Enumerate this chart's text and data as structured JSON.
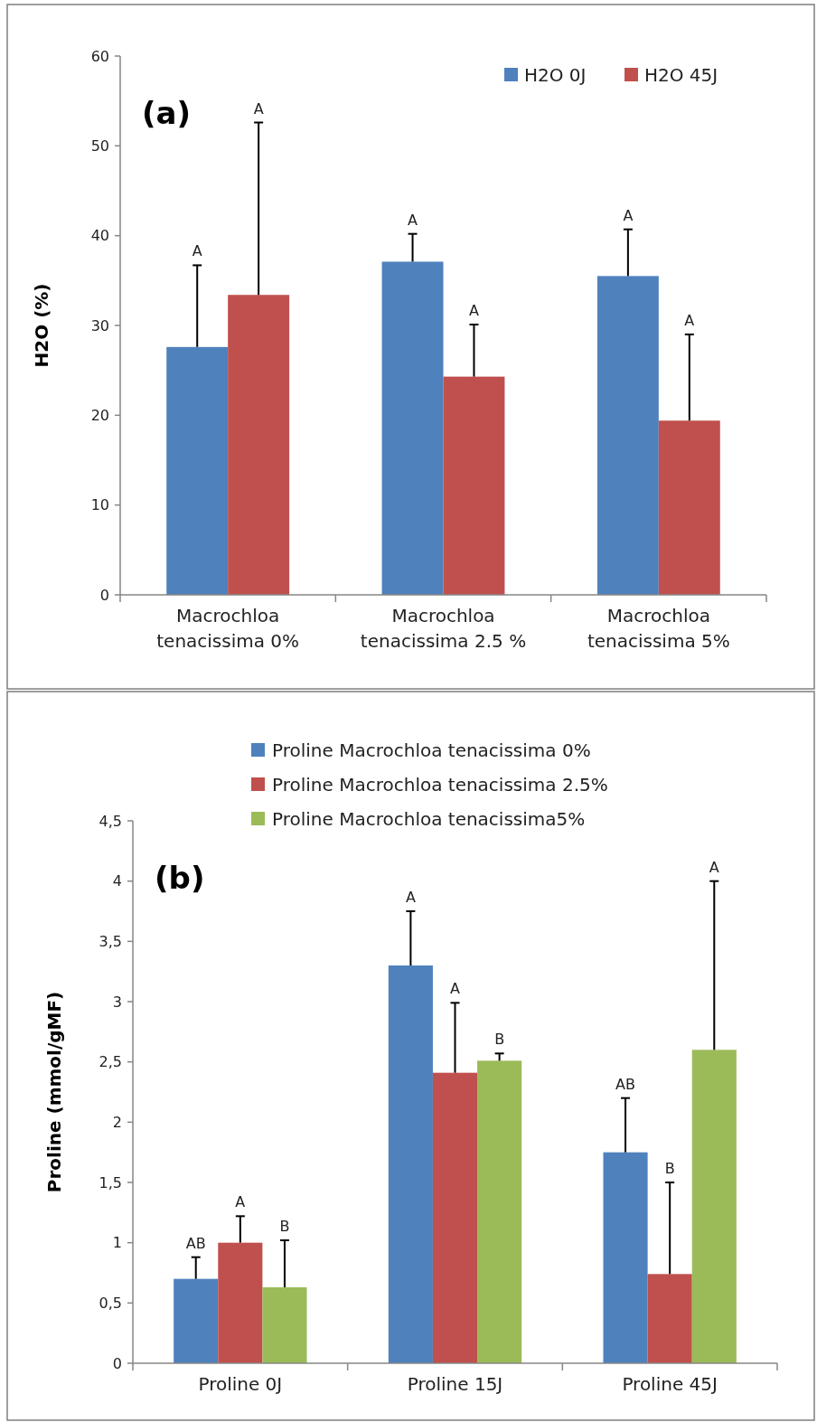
{
  "chart_data": [
    {
      "type": "bar",
      "ylabel": "H2O (%)",
      "categories": [
        "Macrochloa tenacissima 0%",
        "Macrochloa tenacissima 2.5 %",
        "Macrochloa tenacissima 5%"
      ],
      "annotations": [
        "(a)",
        "A",
        "A",
        "A",
        "A",
        "A",
        "A"
      ],
      "series": [
        {
          "name": "H2O 0J",
          "color": "#4f81bd",
          "values": [
            27.6,
            37.1,
            35.5
          ],
          "errors": [
            [
              27.6,
              36.7
            ],
            [
              37.1,
              40.2
            ],
            [
              35.5,
              40.7
            ]
          ]
        },
        {
          "name": "H2O 45J",
          "color": "#c0504d",
          "values": [
            33.4,
            24.3,
            19.4
          ],
          "errors": [
            [
              33.4,
              52.6
            ],
            [
              24.3,
              30.1
            ],
            [
              19.4,
              29.0
            ]
          ]
        }
      ],
      "ylim": [
        0,
        60
      ],
      "yticks": [
        0,
        10,
        20,
        30,
        40,
        50,
        60
      ],
      "grid": false,
      "legend": "top right"
    },
    {
      "type": "bar",
      "ylabel": "Proline (mmol/gMF)",
      "categories": [
        "Proline 0J",
        "Proline 15J",
        "Proline 45J"
      ],
      "annotations": [
        "(b)",
        "AB",
        "A",
        "B",
        "A",
        "A",
        "B",
        "AB",
        "B",
        "A"
      ],
      "series": [
        {
          "name": "Proline Macrochloa tenacissima 0%",
          "color": "#4f81bd",
          "values": [
            0.7,
            3.3,
            1.75
          ],
          "errors": [
            [
              0.7,
              0.88
            ],
            [
              3.3,
              3.75
            ],
            [
              1.75,
              2.2
            ]
          ]
        },
        {
          "name": "Proline Macrochloa tenacissima 2.5%",
          "color": "#c0504d",
          "values": [
            1.0,
            2.41,
            0.74
          ],
          "errors": [
            [
              1.0,
              1.22
            ],
            [
              2.41,
              2.99
            ],
            [
              0.74,
              1.5
            ]
          ]
        },
        {
          "name": "Proline Macrochloa tenacissima5%",
          "color": "#9bbb59",
          "values": [
            0.63,
            2.51,
            2.6
          ],
          "errors": [
            [
              0.63,
              1.02
            ],
            [
              2.51,
              2.57
            ],
            [
              2.6,
              4.0
            ]
          ]
        }
      ],
      "ylim": [
        0,
        4.5
      ],
      "yticks": [
        0,
        {
          "value": 0.5,
          "label": "0,5"
        },
        1,
        {
          "value": 1.5,
          "label": "1,5"
        },
        2,
        {
          "value": 2.5,
          "label": "2,5"
        },
        3,
        {
          "value": 3.5,
          "label": "3,5"
        },
        4,
        {
          "value": 4.5,
          "label": "4,5"
        }
      ],
      "grid": false,
      "legend": "top"
    }
  ]
}
